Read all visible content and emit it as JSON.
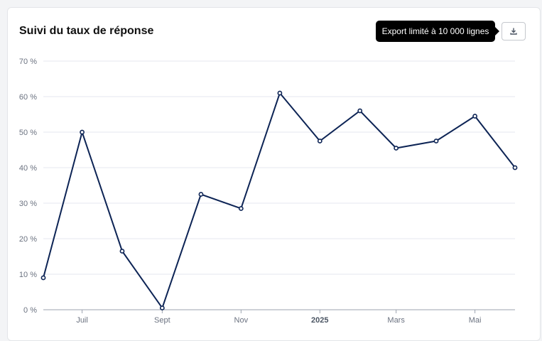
{
  "card": {
    "title": "Suivi du taux de réponse",
    "tooltip": "Export limité à 10 000 lignes"
  },
  "colors": {
    "line": "#0d2455",
    "grid": "#e5e7ef",
    "axis": "#9ca3af"
  },
  "icons": {
    "download": "download-icon"
  },
  "chart_data": {
    "type": "line",
    "x": [
      "2024-06-01",
      "2024-07-01",
      "2024-08-01",
      "2024-09-01",
      "2024-10-01",
      "2024-11-01",
      "2024-12-01",
      "2025-01-01",
      "2025-02-01",
      "2025-03-01",
      "2025-04-01",
      "2025-05-01",
      "2025-06-01"
    ],
    "series": [
      {
        "values": [
          9,
          50,
          16.5,
          0.5,
          32.5,
          28.5,
          61,
          47.5,
          56,
          45.5,
          47.5,
          54.5,
          40
        ]
      }
    ],
    "ylim": [
      0,
      70
    ],
    "yticks": [
      {
        "value": 0,
        "label": "0 %"
      },
      {
        "value": 10,
        "label": "10 %"
      },
      {
        "value": 20,
        "label": "20 %"
      },
      {
        "value": 30,
        "label": "30 %"
      },
      {
        "value": 40,
        "label": "40 %"
      },
      {
        "value": 50,
        "label": "50 %"
      },
      {
        "value": 60,
        "label": "60 %"
      },
      {
        "value": 70,
        "label": "70 %"
      }
    ],
    "xticks": [
      {
        "date": "2024-07-01",
        "label": "Juil",
        "bold": false
      },
      {
        "date": "2024-09-01",
        "label": "Sept",
        "bold": false
      },
      {
        "date": "2024-11-01",
        "label": "Nov",
        "bold": false
      },
      {
        "date": "2025-01-01",
        "label": "2025",
        "bold": true
      },
      {
        "date": "2025-03-01",
        "label": "Mars",
        "bold": false
      },
      {
        "date": "2025-05-01",
        "label": "Mai",
        "bold": false
      }
    ],
    "grid": true,
    "markers": true
  }
}
